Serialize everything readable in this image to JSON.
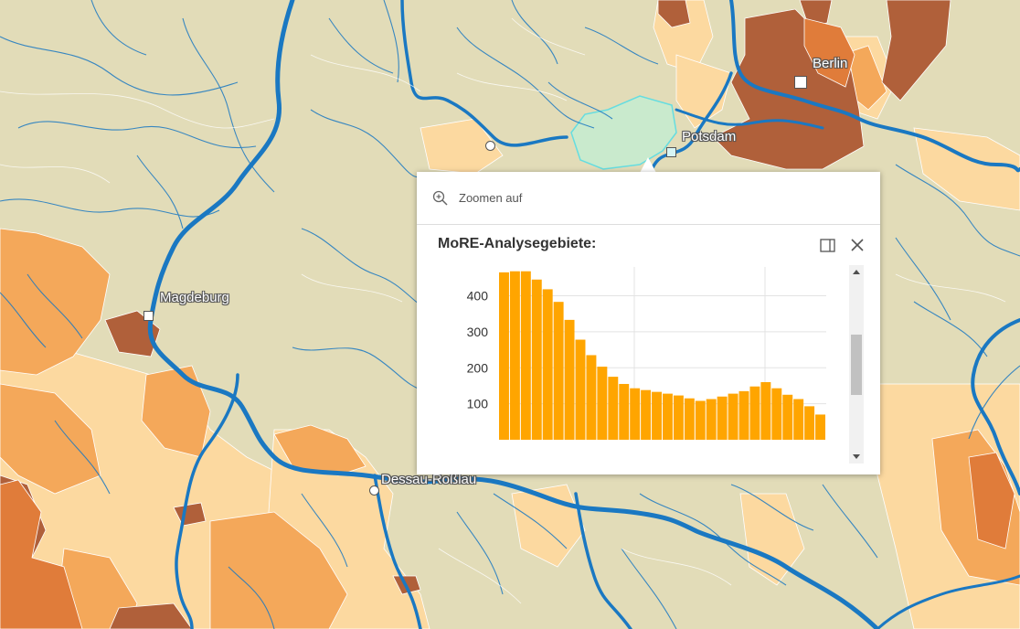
{
  "map": {
    "cities": [
      {
        "id": "berlin",
        "name": "Berlin"
      },
      {
        "id": "potsdam",
        "name": "Potsdam"
      },
      {
        "id": "magdeburg",
        "name": "Magdeburg"
      },
      {
        "id": "dessau",
        "name": "Dessau-Roßlau"
      }
    ],
    "colors": {
      "background": "#e2dcb8",
      "light_orange": "#fcd9a0",
      "orange": "#f4a85a",
      "dark_orange": "#e07c3a",
      "brown": "#b0603a",
      "river": "#1a78c2",
      "selected_area": "#c4ecd0",
      "selected_outline": "#66dde0"
    }
  },
  "popup": {
    "zoom_label": "Zoomen auf",
    "zoom_icon": "zoom-in-icon",
    "title": "MoRE-Analysegebiete:",
    "dock_icon": "dock-icon",
    "close_icon": "close-icon"
  },
  "chart_data": {
    "type": "bar",
    "color": "#ffa500",
    "ylim": [
      0,
      480
    ],
    "yticks": [
      100,
      200,
      300,
      400
    ],
    "grid": true,
    "values": [
      465,
      468,
      468,
      445,
      418,
      383,
      333,
      278,
      235,
      203,
      175,
      155,
      143,
      138,
      133,
      128,
      123,
      115,
      108,
      113,
      120,
      128,
      135,
      148,
      160,
      143,
      125,
      113,
      93,
      70
    ]
  }
}
